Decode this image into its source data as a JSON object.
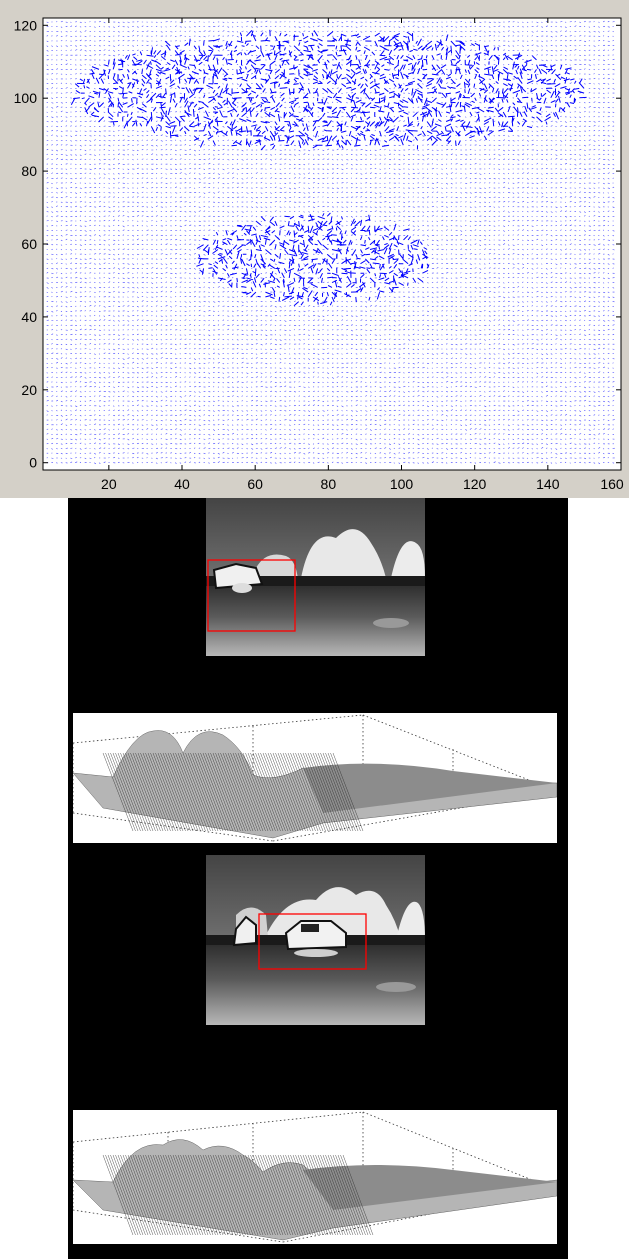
{
  "chart_data": [
    {
      "type": "quiver",
      "title": "",
      "xlabel": "",
      "ylabel": "",
      "xlim": [
        2,
        160
      ],
      "ylim": [
        -2,
        122
      ],
      "xticks": [
        20,
        40,
        60,
        80,
        100,
        120,
        140,
        160
      ],
      "xtick_labels": [
        "20",
        "40",
        "60",
        "80",
        "100",
        "120",
        "140",
        "160"
      ],
      "yticks": [
        0,
        20,
        40,
        60,
        80,
        100,
        120
      ],
      "ytick_labels": [
        "0",
        "20",
        "40",
        "60",
        "80",
        "100",
        "120"
      ],
      "grid": false,
      "arrow_color": "#0000ff",
      "dense_regions": [
        {
          "x": [
            44,
            108
          ],
          "y": [
            44,
            68
          ]
        },
        {
          "x": [
            10,
            150
          ],
          "y": [
            86,
            118
          ]
        }
      ]
    },
    {
      "type": "image",
      "caption": "",
      "tracking_box_color": "#ff0000"
    },
    {
      "type": "surface",
      "caption": ""
    },
    {
      "type": "image",
      "caption": "",
      "tracking_box_color": "#ff0000"
    },
    {
      "type": "surface",
      "caption": ""
    }
  ],
  "colors": {
    "figure_background": "#d4d0c8",
    "axes_background": "#ffffff",
    "lower_background": "#000000"
  }
}
